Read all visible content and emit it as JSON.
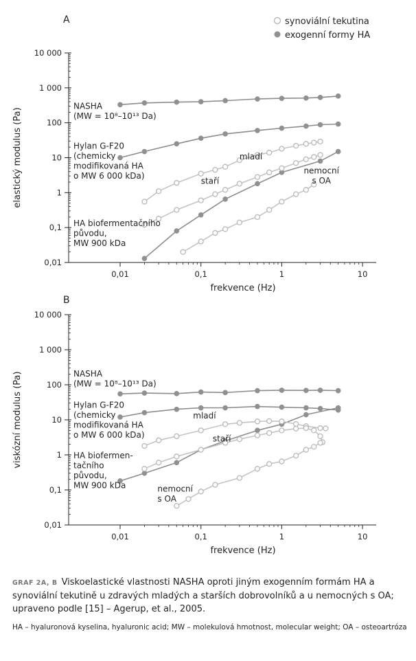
{
  "legend": {
    "open": "synoviální tekutina",
    "filled": "exogenní formy HA"
  },
  "colors": {
    "filled": "#909090",
    "open_stroke": "#b8b8b8",
    "line_filled": "#8c8c8c",
    "line_open": "#c4c4c4",
    "axis": "#222222"
  },
  "chart_data": [
    {
      "type": "line",
      "panel_label": "A",
      "xlabel": "frekvence (Hz)",
      "ylabel": "elastický modulus (Pa)",
      "xscale": "log",
      "yscale": "log",
      "xlim": [
        0.002,
        10
      ],
      "ylim": [
        0.01,
        10000
      ],
      "xticks": [
        0.01,
        0.1,
        1,
        10
      ],
      "xtick_labels": [
        "0,01",
        "0,1",
        "1",
        "10"
      ],
      "yticks": [
        0.01,
        0.1,
        1,
        10,
        100,
        1000,
        10000
      ],
      "ytick_labels": [
        "0,01",
        "0,1",
        "1",
        "10",
        "100",
        "1 000",
        "10 000"
      ],
      "annotations": [
        {
          "lines": [
            "NASHA",
            "(MW = 10⁸–10¹³ Da)"
          ],
          "x": 0.0011,
          "y": 250,
          "anchor": "start"
        },
        {
          "lines": [
            "Hylan G-F20",
            "(chemicky",
            "modifikovaná HA",
            "o MW 6 000 kDa)"
          ],
          "x": 0.0011,
          "y": 18,
          "anchor": "start"
        },
        {
          "lines": [
            "HA biofermentačního",
            "původu,",
            "MW 900 kDa"
          ],
          "x": 0.0011,
          "y": 0.11,
          "anchor": "start"
        },
        {
          "lines": [
            "mladí"
          ],
          "x": 0.3,
          "y": 9,
          "anchor": "start"
        },
        {
          "lines": [
            "staří"
          ],
          "x": 0.1,
          "y": 1.8,
          "anchor": "start"
        },
        {
          "lines": [
            "nemocní",
            "s OA"
          ],
          "x": 3.1,
          "y": 3.5,
          "anchor": "middle"
        }
      ],
      "series": [
        {
          "kind": "filled",
          "x": [
            0.01,
            0.02,
            0.05,
            0.1,
            0.2,
            0.5,
            1,
            2,
            3,
            5
          ],
          "y": [
            330,
            370,
            390,
            400,
            430,
            480,
            500,
            510,
            530,
            580
          ]
        },
        {
          "kind": "filled",
          "x": [
            0.01,
            0.02,
            0.05,
            0.1,
            0.2,
            0.5,
            1,
            2,
            3,
            5
          ],
          "y": [
            10,
            15,
            25,
            36,
            48,
            60,
            70,
            80,
            88,
            92
          ]
        },
        {
          "kind": "filled",
          "x": [
            0.02,
            0.05,
            0.1,
            0.2,
            0.5,
            1,
            3,
            5
          ],
          "y": [
            0.013,
            0.08,
            0.23,
            0.65,
            1.8,
            3.8,
            8,
            15
          ]
        },
        {
          "kind": "open",
          "x": [
            0.02,
            0.03,
            0.05,
            0.1,
            0.15,
            0.2,
            0.3,
            0.5,
            0.7,
            1,
            1.5,
            2,
            2.5,
            3
          ],
          "y": [
            0.55,
            1.1,
            1.9,
            3.5,
            4.5,
            5.5,
            8.5,
            12,
            14,
            18,
            22,
            25,
            27,
            29
          ]
        },
        {
          "kind": "open",
          "x": [
            0.02,
            0.03,
            0.05,
            0.1,
            0.15,
            0.2,
            0.3,
            0.5,
            0.7,
            1,
            1.5,
            2,
            2.5,
            3
          ],
          "y": [
            0.12,
            0.18,
            0.32,
            0.6,
            0.9,
            1.2,
            1.8,
            2.8,
            3.8,
            5,
            7,
            9,
            10.5,
            12
          ]
        },
        {
          "kind": "open",
          "x": [
            0.06,
            0.1,
            0.15,
            0.2,
            0.3,
            0.5,
            0.7,
            1,
            1.5,
            2,
            2.5
          ],
          "y": [
            0.02,
            0.04,
            0.07,
            0.09,
            0.14,
            0.2,
            0.32,
            0.55,
            0.9,
            1.2,
            1.7
          ]
        }
      ]
    },
    {
      "type": "line",
      "panel_label": "B",
      "xlabel": "frekvence (Hz)",
      "ylabel": "viskózní modulus (Pa)",
      "xscale": "log",
      "yscale": "log",
      "xlim": [
        0.002,
        10
      ],
      "ylim": [
        0.01,
        10000
      ],
      "xticks": [
        0.01,
        0.1,
        1,
        10
      ],
      "xtick_labels": [
        "0,01",
        "0,1",
        "1",
        "10"
      ],
      "yticks": [
        0.01,
        0.1,
        1,
        10,
        100,
        1000,
        10000
      ],
      "ytick_labels": [
        "0,01",
        "0,1",
        "1",
        "10",
        "100",
        "1 000",
        "10 000"
      ],
      "annotations": [
        {
          "lines": [
            "NASHA",
            "(MW = 10⁸–10¹³ Da)"
          ],
          "x": 0.0011,
          "y": 170,
          "anchor": "start"
        },
        {
          "lines": [
            "Hylan G-F20",
            "(chemicky",
            "modifikovaná HA",
            "o MW 6 000 kDa)"
          ],
          "x": 0.0011,
          "y": 22,
          "anchor": "start"
        },
        {
          "lines": [
            "HA biofermen-",
            "tačního",
            "původu,",
            "MW 900 kDa"
          ],
          "x": 0.0011,
          "y": 0.8,
          "anchor": "start"
        },
        {
          "lines": [
            "mladí"
          ],
          "x": 0.08,
          "y": 11,
          "anchor": "start"
        },
        {
          "lines": [
            "staří"
          ],
          "x": 0.14,
          "y": 2.4,
          "anchor": "start"
        },
        {
          "lines": [
            "nemocní",
            "s OA"
          ],
          "x": 0.029,
          "y": 0.09,
          "anchor": "start"
        }
      ],
      "series": [
        {
          "kind": "filled",
          "x": [
            0.01,
            0.02,
            0.05,
            0.1,
            0.2,
            0.5,
            1,
            2,
            3,
            5
          ],
          "y": [
            55,
            58,
            56,
            62,
            60,
            68,
            70,
            69,
            70,
            68
          ]
        },
        {
          "kind": "filled",
          "x": [
            0.01,
            0.02,
            0.05,
            0.1,
            0.2,
            0.5,
            1,
            2,
            3,
            5
          ],
          "y": [
            12,
            16,
            20,
            22,
            22,
            24,
            23,
            22,
            21,
            19
          ]
        },
        {
          "kind": "filled",
          "x": [
            0.01,
            0.02,
            0.05,
            0.1,
            0.2,
            0.5,
            1,
            2,
            5
          ],
          "y": [
            0.18,
            0.3,
            0.6,
            1.4,
            2.5,
            5,
            7.5,
            14,
            22
          ]
        },
        {
          "kind": "open",
          "x": [
            0.02,
            0.03,
            0.05,
            0.1,
            0.2,
            0.3,
            0.5,
            0.7,
            1,
            1.5,
            2,
            3,
            3.5
          ],
          "y": [
            1.8,
            2.6,
            3.4,
            5,
            7.5,
            8.2,
            9,
            9.2,
            9,
            7.6,
            6.6,
            5.8,
            5.7
          ]
        },
        {
          "kind": "open",
          "x": [
            0.02,
            0.03,
            0.05,
            0.1,
            0.2,
            0.3,
            0.5,
            0.7,
            1,
            1.5,
            2,
            2.5,
            3,
            3.2
          ],
          "y": [
            0.4,
            0.6,
            0.9,
            1.4,
            2.2,
            2.8,
            3.6,
            4.2,
            5,
            5.6,
            5.8,
            5,
            3.4,
            2.3
          ]
        },
        {
          "kind": "open",
          "x": [
            0.05,
            0.07,
            0.1,
            0.15,
            0.3,
            0.5,
            0.7,
            1,
            1.5,
            2,
            2.5,
            3
          ],
          "y": [
            0.035,
            0.055,
            0.09,
            0.14,
            0.22,
            0.4,
            0.55,
            0.65,
            0.95,
            1.4,
            1.7,
            2.2
          ]
        }
      ]
    }
  ],
  "caption": {
    "label": "GRAF 2A, B",
    "text": "Viskoelastické vlastnosti NASHA oproti jiným exogenním formám HA a synoviální tekutině u zdravých mladých a starších dobrovolníků a u nemocných s OA; upraveno podle [15] – Agerup, et al., 2005.",
    "note": "HA – hyaluronová kyselina, hyaluronic acid; MW – molekulová hmotnost, molecular weight; OA – osteoartróza"
  }
}
